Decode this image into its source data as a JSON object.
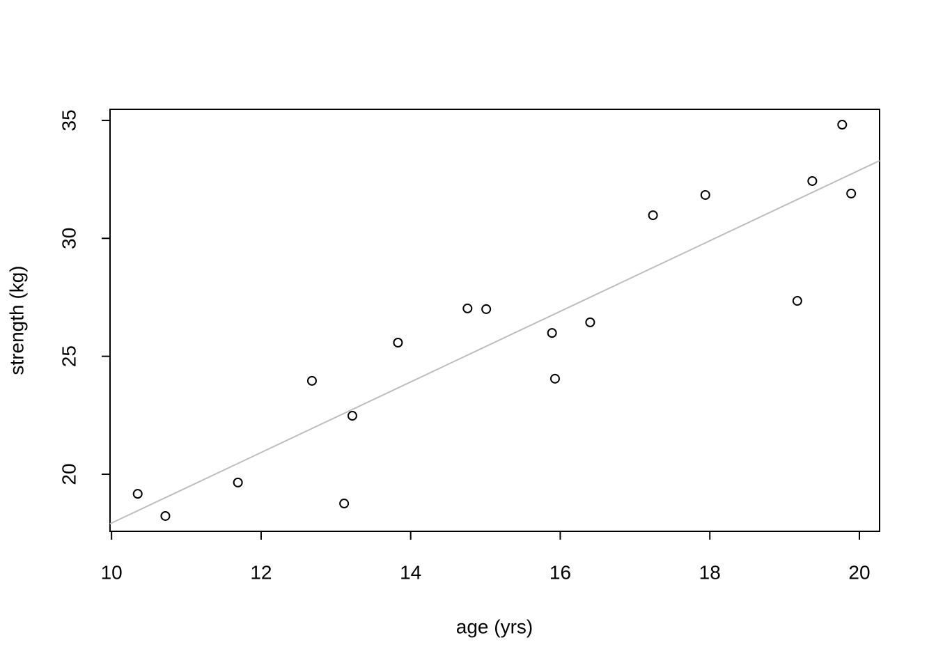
{
  "chart_data": {
    "type": "scatter",
    "xlabel": "age (yrs)",
    "ylabel": "strength (kg)",
    "x": [
      10.35,
      10.72,
      11.69,
      12.68,
      13.11,
      13.22,
      13.83,
      14.76,
      15.01,
      15.89,
      15.93,
      16.4,
      17.24,
      17.94,
      19.17,
      19.37,
      19.77,
      19.89
    ],
    "y": [
      19.17,
      18.23,
      19.65,
      23.96,
      18.76,
      22.48,
      25.58,
      27.03,
      27.0,
      25.99,
      24.05,
      26.44,
      30.98,
      31.84,
      27.35,
      32.43,
      34.82,
      31.9
    ],
    "color": "#000000",
    "fit": {
      "intercept": 2.97,
      "slope": 1.496,
      "color": "#bebebe"
    },
    "xlim": [
      9.98,
      20.27
    ],
    "xticks": [
      10,
      12,
      14,
      16,
      18,
      20
    ],
    "ylim": [
      17.58,
      35.47
    ],
    "yticks": [
      20,
      25,
      30,
      35
    ]
  }
}
